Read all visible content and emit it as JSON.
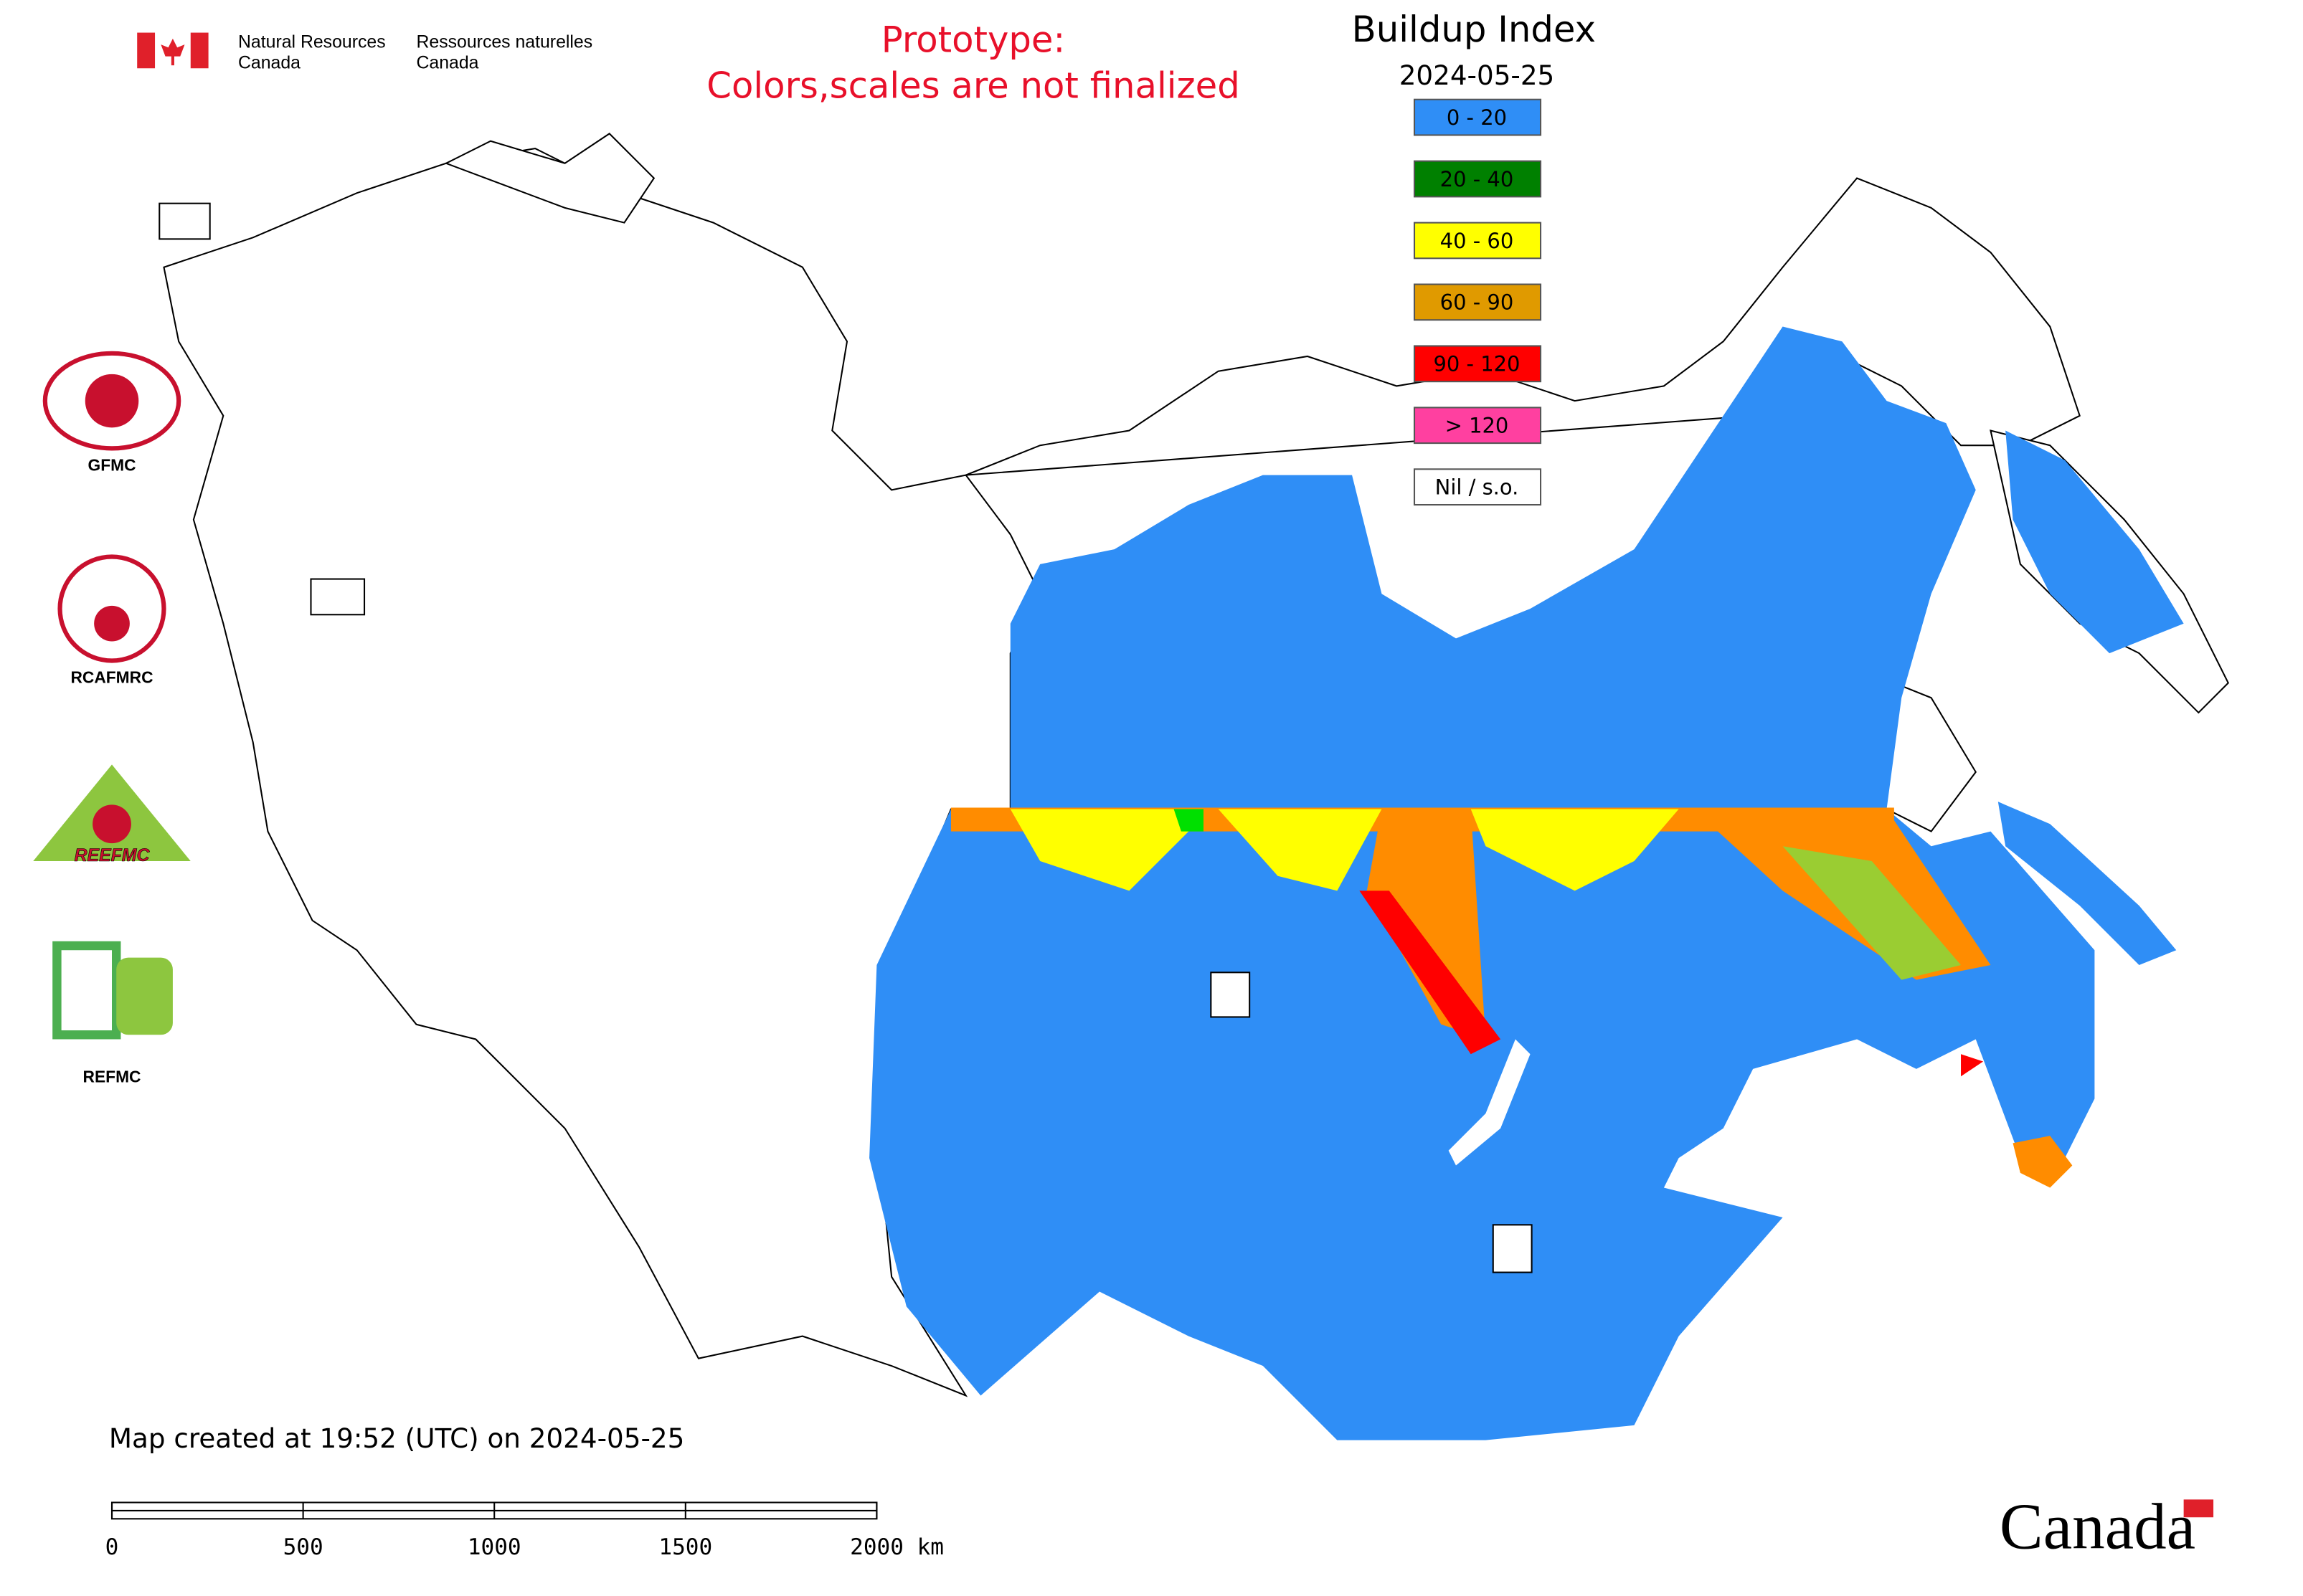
{
  "header": {
    "english": [
      "Natural Resources",
      "Canada"
    ],
    "french": [
      "Ressources naturelles",
      "Canada"
    ]
  },
  "notice": [
    "Prototype:",
    "Colors,scales are not finalized"
  ],
  "map": {
    "title": "Buildup Index",
    "date": "2024-05-25",
    "legend": [
      {
        "label": "0 - 20",
        "color": "#2f8ef6"
      },
      {
        "label": "20 - 40",
        "color": "#008000"
      },
      {
        "label": "40 - 60",
        "color": "#ffff00"
      },
      {
        "label": "60 - 90",
        "color": "#e09a00"
      },
      {
        "label": "90 - 120",
        "color": "#ff0000"
      },
      {
        "label": "> 120",
        "color": "#ff40a0"
      },
      {
        "label": "Nil / s.o.",
        "color": "#ffffff"
      }
    ]
  },
  "logos": [
    "GFMC",
    "RCAFMRC",
    "REEFMC",
    "REFMC"
  ],
  "footer": {
    "created": "Map created at 19:52 (UTC) on 2024-05-25",
    "scale_labels": [
      "0",
      "500",
      "1000",
      "1500",
      "2000 km"
    ],
    "wordmark": "Canada"
  }
}
